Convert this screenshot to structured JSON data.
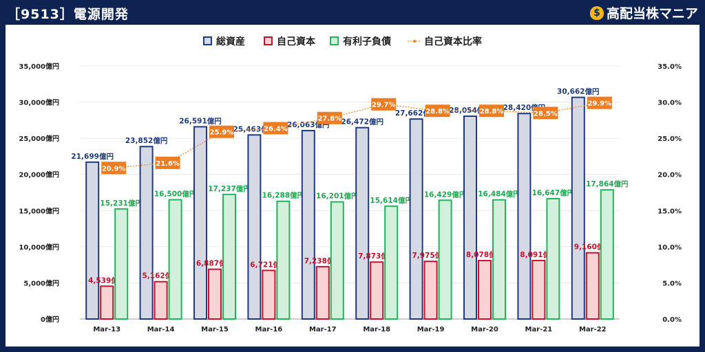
{
  "header": {
    "title": "［9513］電源開発"
  },
  "brand": {
    "name": "高配当株マニア",
    "icon": "money-bag-icon",
    "icon_glyph": "$"
  },
  "colors": {
    "total_assets_stroke": "#1f3a7a",
    "total_assets_fill": "#d5d9e6",
    "equity_stroke": "#c8102e",
    "equity_fill": "#f9d3d3",
    "debt_stroke": "#1fb45a",
    "debt_fill": "#d3f0dc",
    "ratio_line": "#f08a24",
    "ratio_label_bg": "#ee7d22",
    "total_label": "#1f3a7a",
    "equity_label": "#c8102e",
    "debt_label": "#1fa851"
  },
  "chart_data": {
    "type": "bar",
    "categories": [
      "Mar-13",
      "Mar-14",
      "Mar-15",
      "Mar-16",
      "Mar-17",
      "Mar-18",
      "Mar-19",
      "Mar-20",
      "Mar-21",
      "Mar-22"
    ],
    "series": [
      {
        "name": "総資産",
        "kind": "bar",
        "axis": "left",
        "values": [
          21699,
          23852,
          26591,
          25463,
          26063,
          26472,
          27662,
          28054,
          28420,
          30662
        ]
      },
      {
        "name": "自己資本",
        "kind": "bar",
        "axis": "left",
        "values": [
          4539,
          5162,
          6887,
          6721,
          7238,
          7873,
          7975,
          8078,
          8091,
          9160
        ]
      },
      {
        "name": "有利子負債",
        "kind": "bar",
        "axis": "left",
        "values": [
          15231,
          16500,
          17237,
          16288,
          16201,
          15614,
          16429,
          16484,
          16647,
          17864
        ]
      },
      {
        "name": "自己資本比率",
        "kind": "line",
        "axis": "right",
        "values": [
          20.9,
          21.6,
          25.9,
          26.4,
          27.8,
          29.7,
          28.8,
          28.8,
          28.5,
          29.9
        ]
      }
    ],
    "bar_value_labels": {
      "総資産": [
        "21,699億円",
        "23,852億円",
        "26,591億円",
        "25,463億円",
        "26,063億円",
        "26,472億円",
        "27,662億円",
        "28,054億円",
        "28,420億円",
        "30,662億円"
      ],
      "自己資本": [
        "4,539億円",
        "5,162億円",
        "6,887億円",
        "6,721億円",
        "7,238億円",
        "7,873億円",
        "7,975億円",
        "8,078億円",
        "8,091億円",
        "9,160億円"
      ],
      "有利子負債": [
        "15,231億円",
        "16,500億円",
        "17,237億円",
        "16,288億円",
        "16,201億円",
        "15,614億円",
        "16,429億円",
        "16,484億円",
        "16,647億円",
        "17,864億円"
      ]
    },
    "ratio_labels": [
      "20.9%",
      "21.6%",
      "25.9%",
      "26.4%",
      "27.8%",
      "29.7%",
      "28.8%",
      "28.8%",
      "28.5%",
      "29.9%"
    ],
    "y_left": {
      "min": 0,
      "max": 35000,
      "ticks": [
        "0億円",
        "5,000億円",
        "10,000億円",
        "15,000億円",
        "20,000億円",
        "25,000億円",
        "30,000億円",
        "35,000億円"
      ]
    },
    "y_right": {
      "min": 0,
      "max": 35,
      "ticks": [
        "0.0%",
        "5.0%",
        "10.0%",
        "15.0%",
        "20.0%",
        "25.0%",
        "30.0%",
        "35.0%"
      ]
    },
    "legend": {
      "position": "top",
      "items": [
        "総資産",
        "自己資本",
        "有利子負債",
        "自己資本比率"
      ]
    },
    "grid": true
  }
}
